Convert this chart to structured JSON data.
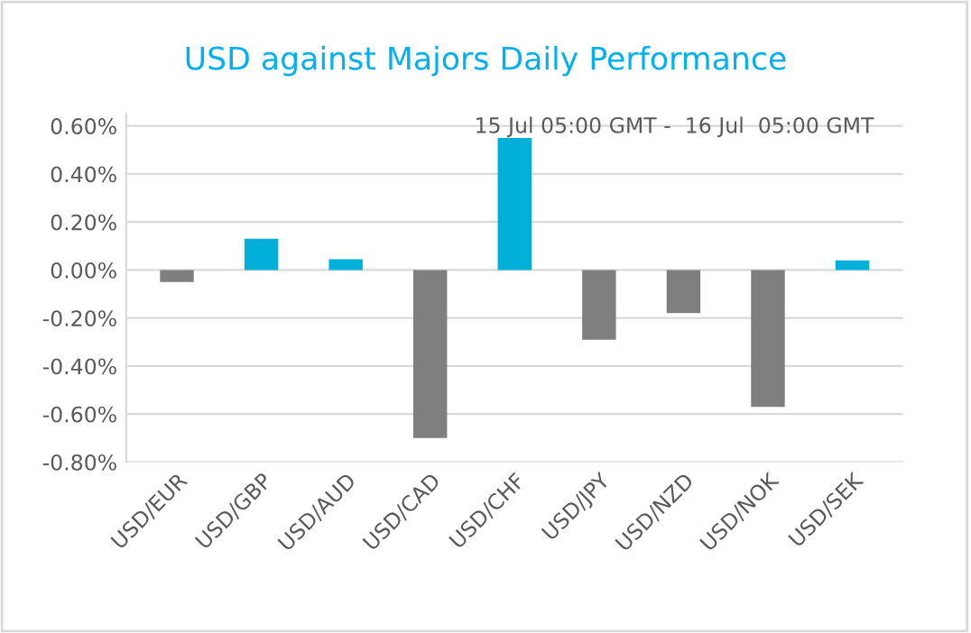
{
  "chart_data": {
    "type": "bar",
    "title": "USD against Majors Daily Performance",
    "subtitle": "15 Jul 05:00 GMT -  16 Jul  05:00 GMT",
    "categories": [
      "USD/EUR",
      "USD/GBP",
      "USD/AUD",
      "USD/CAD",
      "USD/CHF",
      "USD/JPY",
      "USD/NZD",
      "USD/NOK",
      "USD/SEK"
    ],
    "values": [
      -0.05,
      0.13,
      0.045,
      -0.7,
      0.55,
      -0.29,
      -0.18,
      -0.57,
      0.04
    ],
    "colors": [
      "#7f7f7f",
      "#00b0d8",
      "#00b0d8",
      "#7f7f7f",
      "#00b0d8",
      "#7f7f7f",
      "#7f7f7f",
      "#7f7f7f",
      "#00b0d8"
    ],
    "ylim": [
      -0.8,
      0.65
    ],
    "yticks": [
      {
        "value": -0.8,
        "label": "-0.80%"
      },
      {
        "value": -0.6,
        "label": "-0.60%"
      },
      {
        "value": -0.4,
        "label": "-0.40%"
      },
      {
        "value": -0.2,
        "label": "-0.20%"
      },
      {
        "value": 0,
        "label": "0.00%"
      },
      {
        "value": 0.2,
        "label": "0.20%"
      },
      {
        "value": 0.4,
        "label": "0.40%"
      },
      {
        "value": 0.6,
        "label": "0.60%"
      }
    ],
    "grid": "y"
  }
}
